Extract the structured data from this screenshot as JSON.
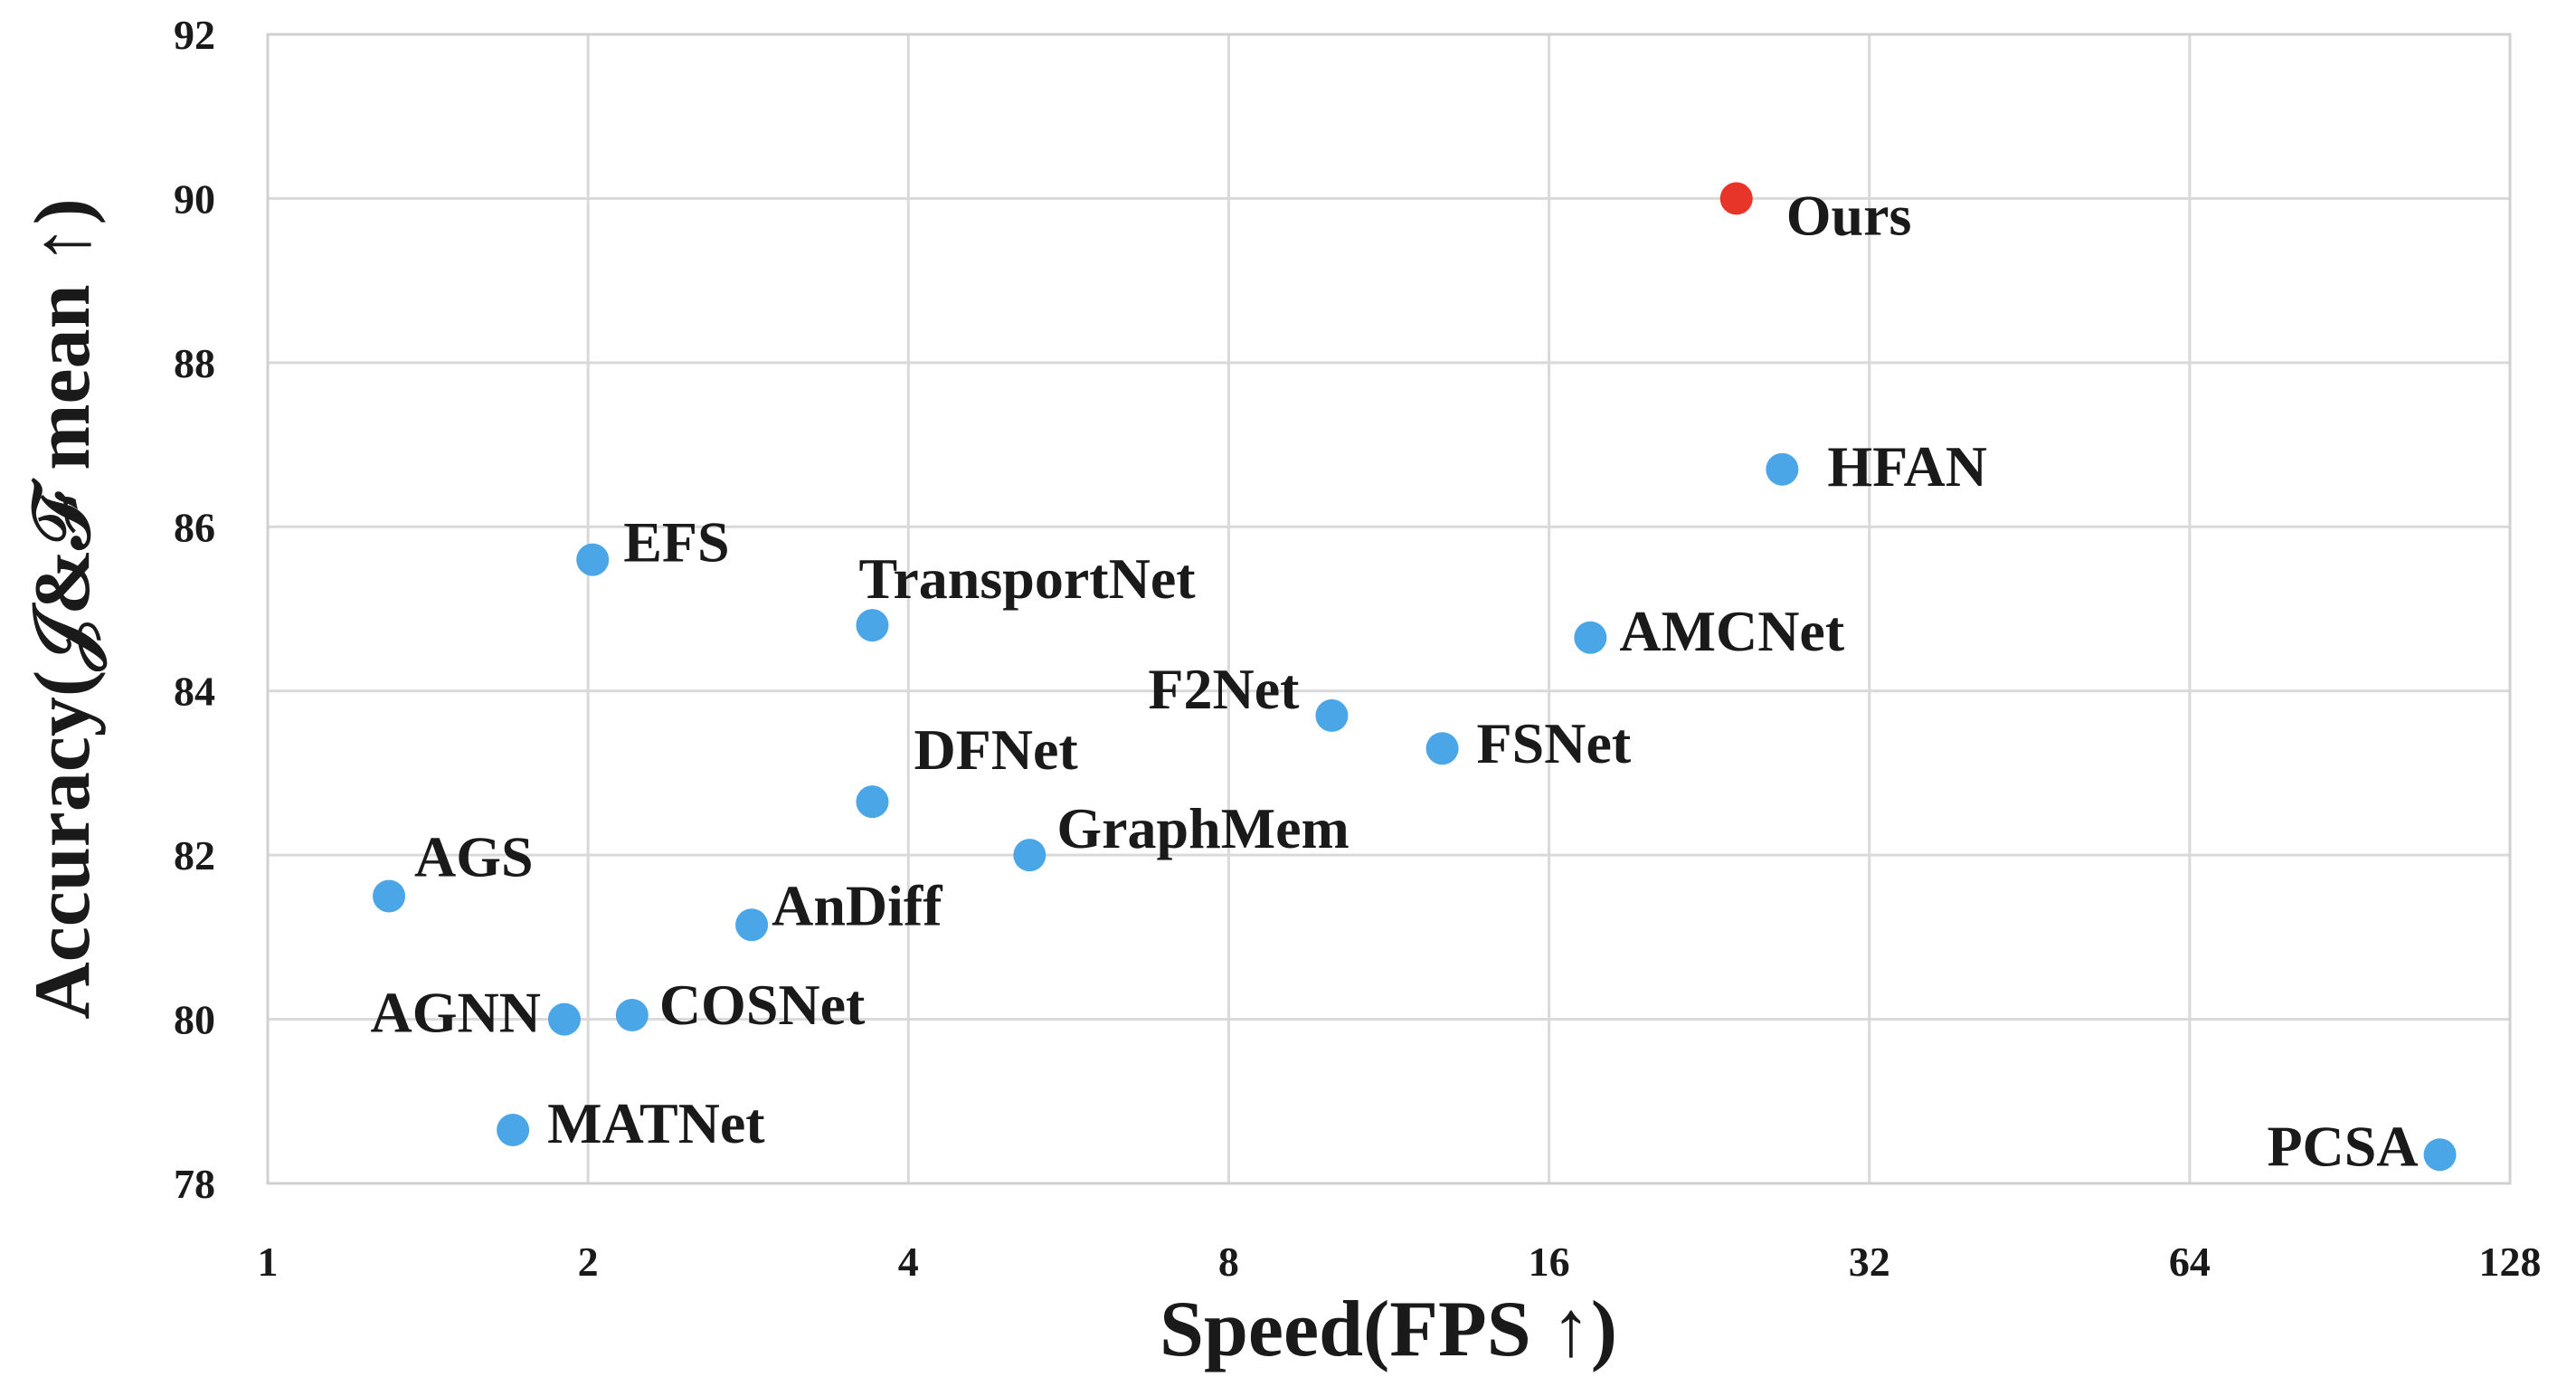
{
  "chart_data": {
    "type": "scatter",
    "title": "",
    "xlabel": "Speed(FPS ↑)",
    "ylabel": "Accuracy(𝒥&ℱ mean ↑)",
    "x_scale": "log2",
    "xlim": [
      1,
      128
    ],
    "ylim": [
      78,
      92
    ],
    "x_ticks": [
      1,
      2,
      4,
      8,
      16,
      32,
      64,
      128
    ],
    "y_ticks": [
      78,
      80,
      82,
      84,
      86,
      88,
      90,
      92
    ],
    "grid": true,
    "default_color": "#4ba6e8",
    "highlight_color": "#e8352a",
    "points": [
      {
        "name": "Ours",
        "x": 24.0,
        "y": 90.0,
        "highlight": true
      },
      {
        "name": "HFAN",
        "x": 26.5,
        "y": 86.7
      },
      {
        "name": "EFS",
        "x": 2.02,
        "y": 85.6
      },
      {
        "name": "TransportNet",
        "x": 3.7,
        "y": 84.8
      },
      {
        "name": "AMCNet",
        "x": 17.5,
        "y": 84.65
      },
      {
        "name": "F2Net",
        "x": 10.0,
        "y": 83.7
      },
      {
        "name": "FSNet",
        "x": 12.7,
        "y": 83.3
      },
      {
        "name": "DFNet",
        "x": 3.7,
        "y": 82.65
      },
      {
        "name": "GraphMem",
        "x": 5.2,
        "y": 82.0
      },
      {
        "name": "AGS",
        "x": 1.3,
        "y": 81.5
      },
      {
        "name": "AnDiff",
        "x": 2.85,
        "y": 81.15
      },
      {
        "name": "COSNet",
        "x": 2.2,
        "y": 80.05
      },
      {
        "name": "AGNN",
        "x": 1.9,
        "y": 80.0
      },
      {
        "name": "MATNet",
        "x": 1.7,
        "y": 78.65
      },
      {
        "name": "PCSA",
        "x": 110,
        "y": 78.35
      }
    ]
  }
}
